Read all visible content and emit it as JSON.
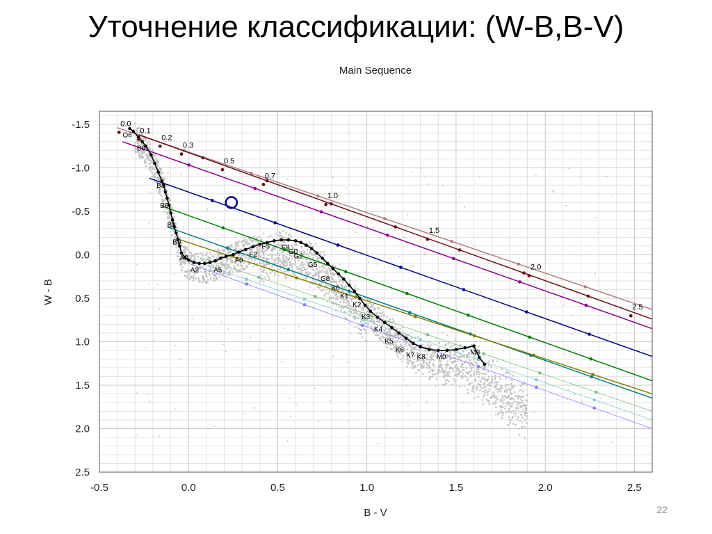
{
  "slide": {
    "title": "Уточнение классификации: (W-B,B-V)",
    "page_number": "22"
  },
  "chart_data": {
    "type": "scatter",
    "title": "Main Sequence",
    "xlabel": "B - V",
    "ylabel": "W - B",
    "xlim": [
      -0.5,
      2.6
    ],
    "ylim": [
      2.5,
      -1.65
    ],
    "y_inverted": true,
    "grid": true,
    "x_ticks": [
      "-0.5",
      "0.0",
      "0.5",
      "1.0",
      "1.5",
      "2.0",
      "2.5"
    ],
    "y_ticks": [
      "-1.5",
      "-1.0",
      "-0.5",
      "0.0",
      "0.5",
      "1.0",
      "1.5",
      "2.0",
      "2.5"
    ],
    "main_sequence": {
      "color": "#000000",
      "points": [
        [
          -0.33,
          -1.45
        ],
        [
          -0.31,
          -1.42
        ],
        [
          -0.28,
          -1.35
        ],
        [
          -0.26,
          -1.3
        ],
        [
          -0.24,
          -1.25
        ],
        [
          -0.21,
          -1.15
        ],
        [
          -0.19,
          -1.05
        ],
        [
          -0.17,
          -0.95
        ],
        [
          -0.15,
          -0.85
        ],
        [
          -0.14,
          -0.8
        ],
        [
          -0.13,
          -0.72
        ],
        [
          -0.12,
          -0.65
        ],
        [
          -0.11,
          -0.57
        ],
        [
          -0.1,
          -0.48
        ],
        [
          -0.09,
          -0.4
        ],
        [
          -0.08,
          -0.32
        ],
        [
          -0.07,
          -0.25
        ],
        [
          -0.06,
          -0.18
        ],
        [
          -0.05,
          -0.1
        ],
        [
          -0.04,
          -0.02
        ],
        [
          -0.02,
          0.03
        ],
        [
          0.0,
          0.06
        ],
        [
          0.03,
          0.09
        ],
        [
          0.06,
          0.1
        ],
        [
          0.09,
          0.1
        ],
        [
          0.12,
          0.09
        ],
        [
          0.15,
          0.07
        ],
        [
          0.18,
          0.04
        ],
        [
          0.21,
          0.02
        ],
        [
          0.25,
          0.0
        ],
        [
          0.28,
          -0.03
        ],
        [
          0.32,
          -0.06
        ],
        [
          0.36,
          -0.09
        ],
        [
          0.4,
          -0.12
        ],
        [
          0.44,
          -0.14
        ],
        [
          0.48,
          -0.16
        ],
        [
          0.52,
          -0.17
        ],
        [
          0.56,
          -0.17
        ],
        [
          0.6,
          -0.16
        ],
        [
          0.63,
          -0.14
        ],
        [
          0.66,
          -0.11
        ],
        [
          0.69,
          -0.07
        ],
        [
          0.72,
          -0.02
        ],
        [
          0.75,
          0.04
        ],
        [
          0.78,
          0.1
        ],
        [
          0.81,
          0.16
        ],
        [
          0.84,
          0.22
        ],
        [
          0.87,
          0.28
        ],
        [
          0.9,
          0.35
        ],
        [
          0.93,
          0.42
        ],
        [
          0.96,
          0.5
        ],
        [
          0.99,
          0.58
        ],
        [
          1.02,
          0.65
        ],
        [
          1.06,
          0.72
        ],
        [
          1.1,
          0.78
        ],
        [
          1.14,
          0.84
        ],
        [
          1.18,
          0.9
        ],
        [
          1.22,
          0.96
        ],
        [
          1.26,
          1.02
        ],
        [
          1.3,
          1.06
        ],
        [
          1.35,
          1.09
        ],
        [
          1.4,
          1.1
        ],
        [
          1.45,
          1.1
        ],
        [
          1.5,
          1.09
        ],
        [
          1.55,
          1.07
        ],
        [
          1.6,
          1.05
        ],
        [
          1.63,
          1.18
        ],
        [
          1.66,
          1.26
        ]
      ]
    },
    "spectral_labels": [
      {
        "text": "O6",
        "x": -0.37,
        "y": -1.35
      },
      {
        "text": "B0",
        "x": -0.29,
        "y": -1.2
      },
      {
        "text": "B3",
        "x": -0.18,
        "y": -0.77
      },
      {
        "text": "B6",
        "x": -0.16,
        "y": -0.54
      },
      {
        "text": "B8",
        "x": -0.12,
        "y": -0.32
      },
      {
        "text": "B9",
        "x": -0.09,
        "y": -0.12
      },
      {
        "text": "A0",
        "x": -0.05,
        "y": 0.06
      },
      {
        "text": "A2",
        "x": 0.01,
        "y": 0.2
      },
      {
        "text": "A5",
        "x": 0.14,
        "y": 0.2
      },
      {
        "text": "F0",
        "x": 0.26,
        "y": 0.09
      },
      {
        "text": "F2",
        "x": 0.34,
        "y": 0.02
      },
      {
        "text": "F5",
        "x": 0.41,
        "y": -0.07
      },
      {
        "text": "F8",
        "x": 0.52,
        "y": -0.06
      },
      {
        "text": "G0",
        "x": 0.56,
        "y": -0.01
      },
      {
        "text": "G2",
        "x": 0.59,
        "y": 0.04
      },
      {
        "text": "G5",
        "x": 0.67,
        "y": 0.14
      },
      {
        "text": "G8",
        "x": 0.74,
        "y": 0.3
      },
      {
        "text": "K0",
        "x": 0.8,
        "y": 0.41
      },
      {
        "text": "K1",
        "x": 0.85,
        "y": 0.5
      },
      {
        "text": "K2",
        "x": 0.92,
        "y": 0.6
      },
      {
        "text": "K3",
        "x": 0.97,
        "y": 0.74
      },
      {
        "text": "K4",
        "x": 1.04,
        "y": 0.88
      },
      {
        "text": "K5",
        "x": 1.1,
        "y": 1.02
      },
      {
        "text": "K6",
        "x": 1.16,
        "y": 1.12
      },
      {
        "text": "K7",
        "x": 1.22,
        "y": 1.18
      },
      {
        "text": "K8",
        "x": 1.28,
        "y": 1.2
      },
      {
        "text": "M0",
        "x": 1.39,
        "y": 1.2
      },
      {
        "text": "M3",
        "x": 1.58,
        "y": 1.15
      }
    ],
    "reddening_lines": [
      {
        "label": "0.0",
        "color": "#b37f7f",
        "x1": -0.4,
        "y1": -1.46,
        "x2": 2.6,
        "y2": 0.63
      },
      {
        "label": "0.1",
        "color": "#6b0f1a",
        "x1": -0.28,
        "y1": -1.38,
        "x2": 2.6,
        "y2": 0.74
      },
      {
        "label": "0.2",
        "color": "#8b008b",
        "x1": -0.37,
        "y1": -1.3,
        "x2": 2.6,
        "y2": 0.85
      },
      {
        "label": "0.3",
        "color": "#000080",
        "x1": -0.22,
        "y1": -0.88,
        "x2": 2.6,
        "y2": 1.17
      },
      {
        "label": "0.5",
        "color": "#008000",
        "x1": -0.15,
        "y1": -0.56,
        "x2": 2.6,
        "y2": 1.45
      },
      {
        "label": "0.7",
        "color": "#008080",
        "x1": -0.12,
        "y1": -0.32,
        "x2": 2.6,
        "y2": 1.65
      },
      {
        "label": "1.0",
        "color": "#808000",
        "x1": -0.06,
        "y1": -0.18,
        "x2": 2.6,
        "y2": 1.6
      },
      {
        "label": "1.5",
        "color": "#7fbf7f",
        "x1": 0.08,
        "y1": 0.04,
        "x2": 2.6,
        "y2": 1.8
      },
      {
        "label": "2.0",
        "color": "#7fcfcf",
        "x1": 0.0,
        "y1": 0.05,
        "x2": 2.6,
        "y2": 1.9
      },
      {
        "label": "2.5",
        "color": "#8080ff",
        "x1": 0.0,
        "y1": 0.1,
        "x2": 2.6,
        "y2": 2.0
      }
    ],
    "ebv_labels": [
      {
        "text": "0.0",
        "x": -0.39,
        "y": -1.48,
        "color": "#6b0f1a"
      },
      {
        "text": "0.1",
        "x": -0.28,
        "y": -1.4,
        "color": "#6b0f1a"
      },
      {
        "text": "0.2",
        "x": -0.16,
        "y": -1.32,
        "color": "#6b0f1a"
      },
      {
        "text": "0.3",
        "x": -0.04,
        "y": -1.23,
        "color": "#6b0f1a"
      },
      {
        "text": "0.5",
        "x": 0.19,
        "y": -1.05,
        "color": "#6b0f1a"
      },
      {
        "text": "0.7",
        "x": 0.42,
        "y": -0.88,
        "color": "#6b0f1a"
      },
      {
        "text": "1.0",
        "x": 0.77,
        "y": -0.65,
        "color": "#6b0f1a"
      },
      {
        "text": "1.5",
        "x": 1.34,
        "y": -0.25,
        "color": "#6b0f1a"
      },
      {
        "text": "2.0",
        "x": 1.91,
        "y": 0.17,
        "color": "#6b0f1a"
      },
      {
        "text": "2.5",
        "x": 2.48,
        "y": 0.63,
        "color": "#6b0f1a"
      }
    ],
    "highlight_marker": {
      "x": 0.24,
      "y": -0.6,
      "color": "#00008b"
    }
  }
}
